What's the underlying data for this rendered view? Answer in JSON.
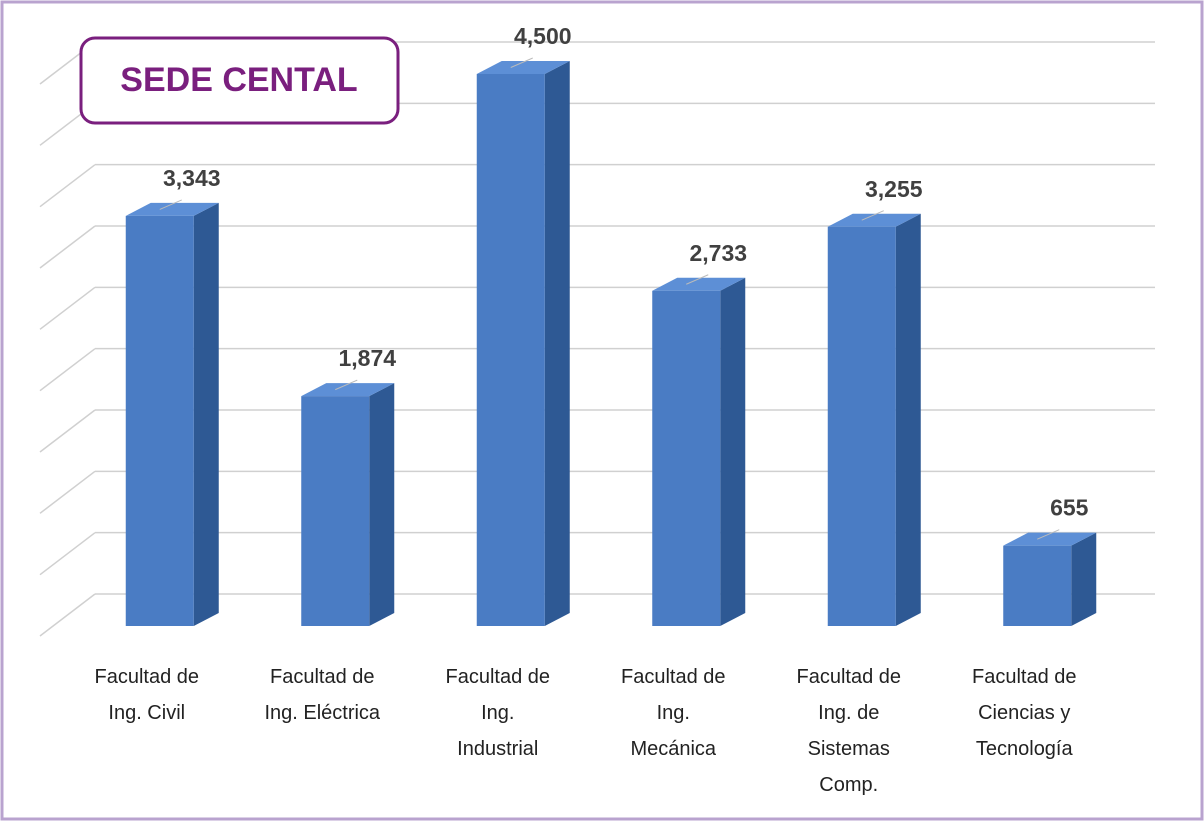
{
  "chart_data": {
    "type": "bar3d",
    "title": "SEDE CENTAL",
    "categories": [
      [
        "Facultad de",
        "Ing. Civil"
      ],
      [
        "Facultad de",
        "Ing. Eléctrica"
      ],
      [
        "Facultad de",
        "Ing.",
        "Industrial"
      ],
      [
        "Facultad de",
        "Ing.",
        "Mecánica"
      ],
      [
        "Facultad de",
        "Ing. de",
        "Sistemas",
        "Comp."
      ],
      [
        "Facultad de",
        "Ciencias y",
        "Tecnología"
      ]
    ],
    "values": [
      3343,
      1874,
      4500,
      2733,
      3255,
      655
    ],
    "value_labels": [
      "3,343",
      "1,874",
      "4,500",
      "2,733",
      "3,255",
      "655"
    ],
    "color": "#4a7cc4",
    "ylim": [
      0,
      4500
    ],
    "yticks": [
      0,
      500,
      1000,
      1500,
      2000,
      2500,
      3000,
      3500,
      4000,
      4500
    ],
    "show_tick_labels": false,
    "grid": true
  }
}
